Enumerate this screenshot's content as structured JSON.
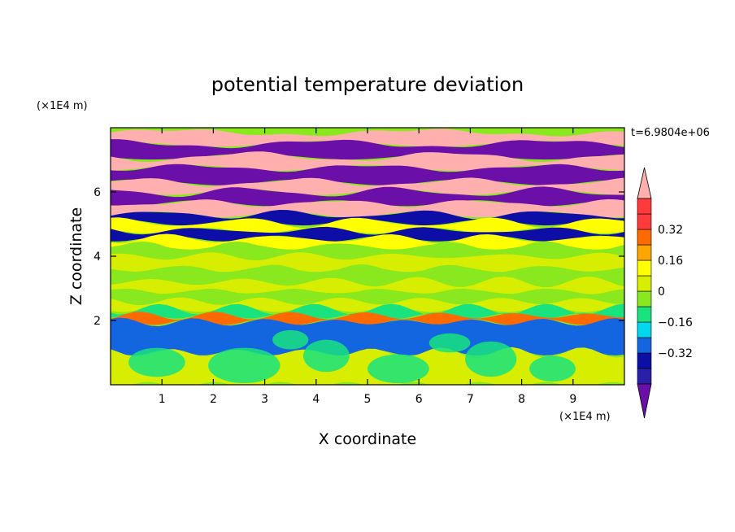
{
  "chart_data": {
    "type": "heatmap",
    "title": "potential temperature deviation",
    "xlabel": "X coordinate",
    "ylabel": "Z coordinate",
    "x_unit": "(×1E4 m)",
    "y_unit": "(×1E4 m)",
    "time_label": "t=6.9804e+06",
    "xlim": [
      0,
      10
    ],
    "ylim": [
      0,
      8
    ],
    "x_ticks": [
      1,
      2,
      3,
      4,
      5,
      6,
      7,
      8,
      9
    ],
    "y_ticks": [
      2,
      4,
      6
    ],
    "x_tick_labels": [
      "1",
      "2",
      "3",
      "4",
      "5",
      "6",
      "7",
      "8",
      "9"
    ],
    "y_tick_labels": [
      "2",
      "4",
      "6"
    ],
    "colorbar": {
      "levels": [
        -0.48,
        -0.4,
        -0.32,
        -0.24,
        -0.16,
        -0.08,
        0,
        0.08,
        0.16,
        0.24,
        0.32,
        0.4,
        0.48
      ],
      "tick_labels": [
        "0.32",
        "0.16",
        "0",
        "−0.16",
        "−0.32"
      ],
      "tick_values": [
        0.32,
        0.16,
        0,
        -0.16,
        -0.32
      ],
      "colors_low_to_high": [
        "#6a0fa8",
        "#2a1fa8",
        "#0c0ea6",
        "#1466e0",
        "#00d8f0",
        "#19e37e",
        "#8ae81e",
        "#d8ee00",
        "#ffff00",
        "#ffa500",
        "#ff6a00",
        "#ff3a3a",
        "#ffb0ae"
      ],
      "extend": "both"
    },
    "bands": [
      {
        "z": 7.85,
        "value": 0.5
      },
      {
        "z": 7.5,
        "value": -0.5
      },
      {
        "z": 7.1,
        "value": 0.5
      },
      {
        "z": 6.75,
        "value": -0.5
      },
      {
        "z": 6.3,
        "value": 0.5
      },
      {
        "z": 6.0,
        "value": -0.5
      },
      {
        "z": 5.65,
        "value": 0.5
      },
      {
        "z": 5.3,
        "value": -0.4
      },
      {
        "z": 5.05,
        "value": 0.1
      },
      {
        "z": 4.8,
        "value": -0.35
      },
      {
        "z": 4.55,
        "value": 0.15
      },
      {
        "z": 4.3,
        "value": -0.05
      },
      {
        "z": 4.0,
        "value": 0.05
      },
      {
        "z": 3.6,
        "value": -0.02
      },
      {
        "z": 3.2,
        "value": 0.04
      },
      {
        "z": 2.9,
        "value": -0.08
      },
      {
        "z": 2.6,
        "value": 0.05
      },
      {
        "z": 2.35,
        "value": -0.15
      },
      {
        "z": 2.15,
        "value": 0.25
      },
      {
        "z": 1.95,
        "value": -0.3
      },
      {
        "z": 1.0,
        "value": 0.02
      },
      {
        "z": 0.0,
        "value": 0.0
      }
    ]
  }
}
